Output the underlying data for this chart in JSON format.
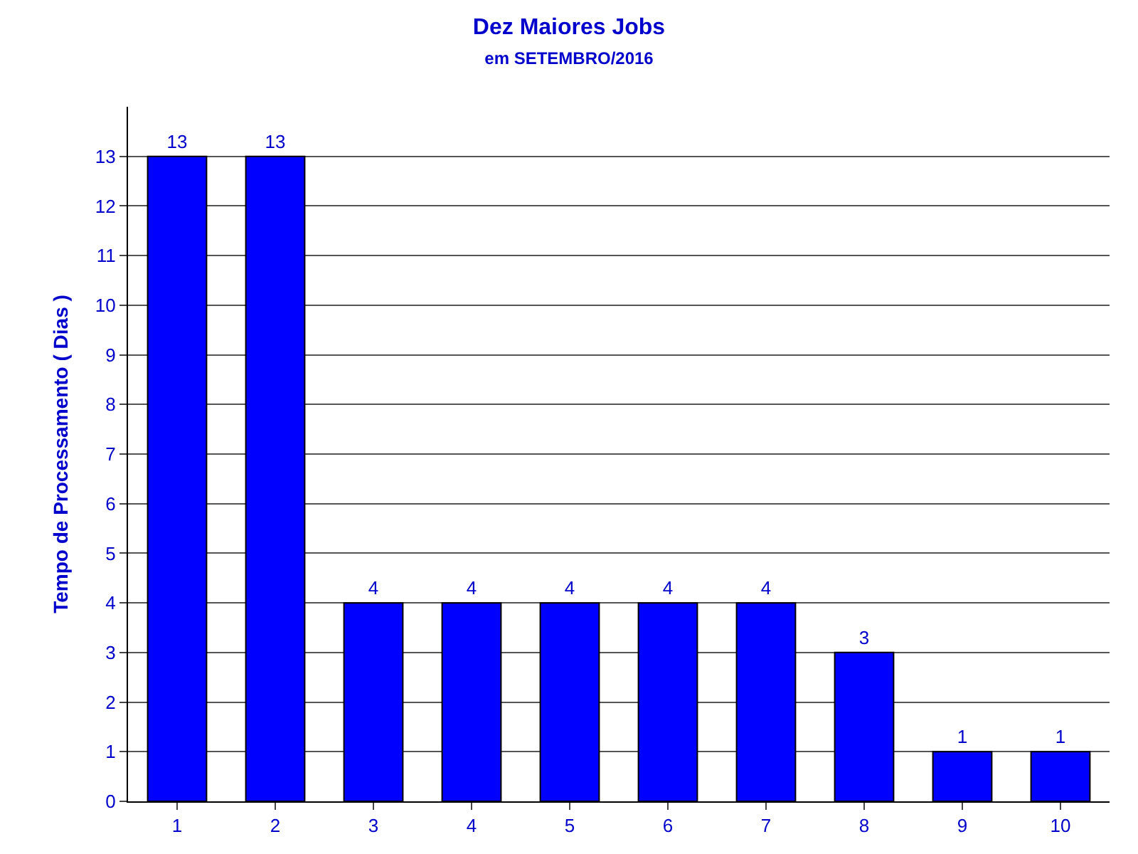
{
  "chart_data": {
    "type": "bar",
    "title": "Dez Maiores Jobs",
    "subtitle": "em SETEMBRO/2016",
    "ylabel": "Tempo de Processamento ( Dias )",
    "categories": [
      "1",
      "2",
      "3",
      "4",
      "5",
      "6",
      "7",
      "8",
      "9",
      "10"
    ],
    "values": [
      13,
      13,
      4,
      4,
      4,
      4,
      4,
      3,
      1,
      1
    ],
    "color": "#0000ff",
    "ylim": [
      0,
      14
    ],
    "yticks": [
      0,
      1,
      2,
      3,
      4,
      5,
      6,
      7,
      8,
      9,
      10,
      11,
      12,
      13
    ],
    "grid": "y",
    "data_labels": true
  }
}
